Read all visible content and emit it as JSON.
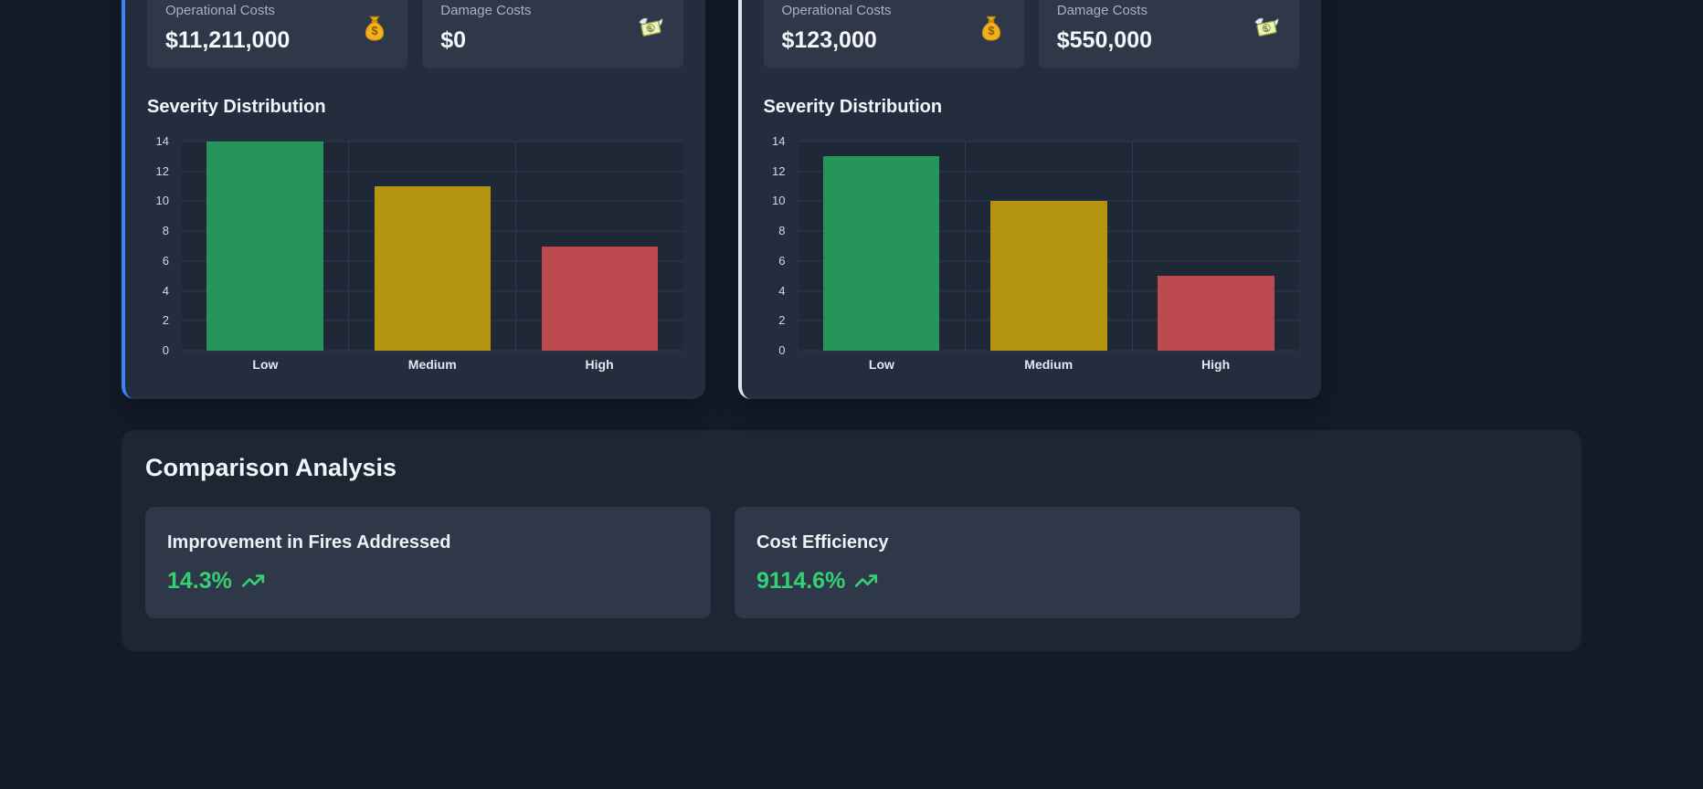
{
  "page": {
    "background": "#131a28"
  },
  "panels": [
    {
      "accent": "#3b82f6",
      "stats": [
        {
          "label": "Operational Costs",
          "value": "$11,211,000",
          "icon": "money-bag-icon"
        },
        {
          "label": "Damage Costs",
          "value": "$0",
          "icon": "money-with-wings-icon"
        }
      ],
      "section_title": "Severity Distribution",
      "chart_data": {
        "type": "bar",
        "title": "Severity Distribution",
        "categories": [
          "Low",
          "Medium",
          "High"
        ],
        "values": [
          14,
          11,
          7
        ],
        "colors": [
          "#27945a",
          "#b5940f",
          "#bd4a4e"
        ],
        "xlabel": "",
        "ylabel": "",
        "ylim": [
          0,
          14
        ],
        "yticks": [
          0,
          2,
          4,
          6,
          8,
          10,
          12,
          14
        ],
        "grid": true,
        "legend": "none"
      }
    },
    {
      "accent": "#dfe3ea",
      "stats": [
        {
          "label": "Operational Costs",
          "value": "$123,000",
          "icon": "money-bag-icon"
        },
        {
          "label": "Damage Costs",
          "value": "$550,000",
          "icon": "money-with-wings-icon"
        }
      ],
      "section_title": "Severity Distribution",
      "chart_data": {
        "type": "bar",
        "title": "Severity Distribution",
        "categories": [
          "Low",
          "Medium",
          "High"
        ],
        "values": [
          13,
          10,
          5
        ],
        "colors": [
          "#27945a",
          "#b5940f",
          "#bd4a4e"
        ],
        "xlabel": "",
        "ylabel": "",
        "ylim": [
          0,
          14
        ],
        "yticks": [
          0,
          2,
          4,
          6,
          8,
          10,
          12,
          14
        ],
        "grid": true,
        "legend": "none"
      }
    }
  ],
  "comparison": {
    "title": "Comparison Analysis",
    "accent": "#35d073",
    "metrics": [
      {
        "label": "Improvement in Fires Addressed",
        "value": "14.3%",
        "trend": "up"
      },
      {
        "label": "Cost Efficiency",
        "value": "9114.6%",
        "trend": "up"
      }
    ]
  }
}
